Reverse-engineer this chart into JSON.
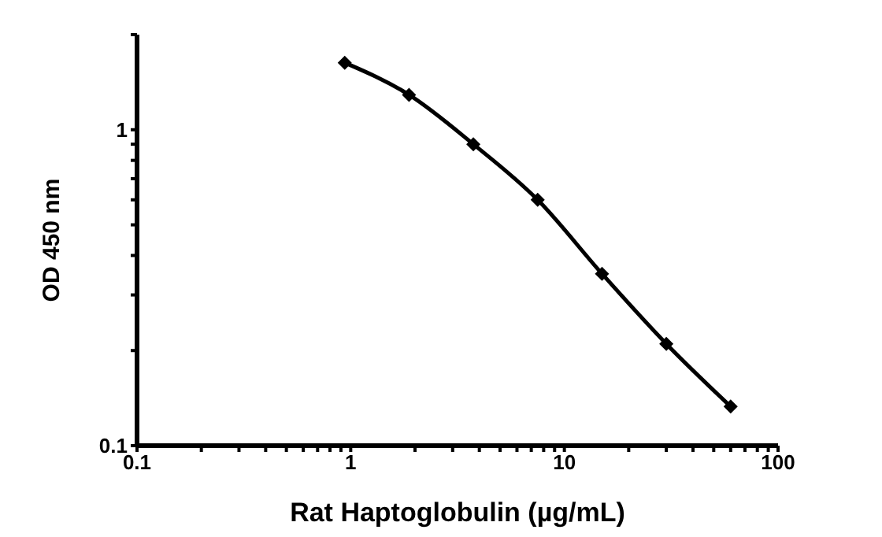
{
  "chart_data": {
    "type": "line",
    "xlabel": "Rat Haptoglobulin (µg/mL)",
    "ylabel": "OD 450 nm",
    "log": "xy",
    "grid": false,
    "marker": "diamond",
    "line_style": "solid",
    "xlim": [
      0.1,
      100
    ],
    "ylim": [
      0.1,
      2
    ],
    "xticks": [
      0.1,
      {
        "value": 0.2,
        "label": null
      },
      {
        "value": 0.3,
        "label": null
      },
      {
        "value": 0.4,
        "label": null
      },
      {
        "value": 0.5,
        "label": null
      },
      {
        "value": 0.6,
        "label": null
      },
      {
        "value": 0.7,
        "label": null
      },
      {
        "value": 0.8,
        "label": null
      },
      {
        "value": 0.9,
        "label": null
      },
      1,
      {
        "value": 2,
        "label": null
      },
      {
        "value": 3,
        "label": null
      },
      {
        "value": 4,
        "label": null
      },
      {
        "value": 5,
        "label": null
      },
      {
        "value": 6,
        "label": null
      },
      {
        "value": 7,
        "label": null
      },
      {
        "value": 8,
        "label": null
      },
      {
        "value": 9,
        "label": null
      },
      10,
      {
        "value": 20,
        "label": null
      },
      {
        "value": 30,
        "label": null
      },
      {
        "value": 40,
        "label": null
      },
      {
        "value": 50,
        "label": null
      },
      {
        "value": 60,
        "label": null
      },
      {
        "value": 70,
        "label": null
      },
      {
        "value": 80,
        "label": null
      },
      {
        "value": 90,
        "label": null
      },
      100
    ],
    "yticks": [
      0.1,
      {
        "value": 0.2,
        "label": null
      },
      {
        "value": 0.3,
        "label": null
      },
      {
        "value": 0.4,
        "label": null
      },
      {
        "value": 0.5,
        "label": null
      },
      {
        "value": 0.6,
        "label": null
      },
      {
        "value": 0.7,
        "label": null
      },
      {
        "value": 0.8,
        "label": null
      },
      {
        "value": 0.9,
        "label": null
      },
      1,
      {
        "value": 2,
        "label": null
      }
    ],
    "x": [
      0.9375,
      1.875,
      3.75,
      7.5,
      15,
      30,
      60
    ],
    "series": [
      {
        "color": "#000000",
        "values": [
          1.63,
          1.29,
          0.9,
          0.6,
          0.35,
          0.21,
          0.133
        ]
      }
    ]
  }
}
